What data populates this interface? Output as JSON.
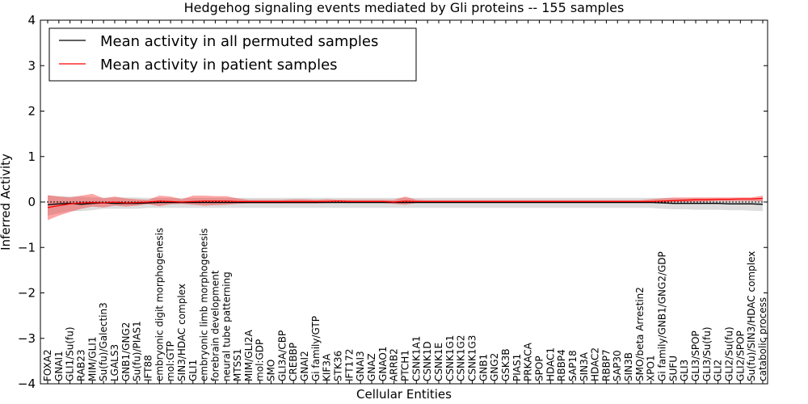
{
  "chart_data": {
    "type": "line",
    "title": "Hedgehog signaling events mediated by Gli proteins -- 155 samples",
    "xlabel": "Cellular Entities",
    "ylabel": "Inferred Activity",
    "ylim": [
      -4,
      4
    ],
    "yticks": [
      4,
      3,
      2,
      1,
      0,
      -1,
      -2,
      -3,
      -4
    ],
    "ytick_labels": [
      "4",
      "3",
      "2",
      "1",
      "0",
      "−1",
      "−2",
      "−3",
      "−4"
    ],
    "reference_line": 0,
    "legend": {
      "placement": "top-left",
      "entries": [
        {
          "label": "Mean activity in all permuted samples",
          "color": "#000000"
        },
        {
          "label": "Mean activity in patient samples",
          "color": "#ff0000"
        }
      ]
    },
    "categories": [
      "FOXA2",
      "GNAI1",
      "GLI1/Su(fu)",
      "RAB23",
      "MIM/GLI1",
      "Su(fu)/Galectin3",
      "LGALS3",
      "GNB1/GNG2",
      "Su(fu)/PIAS1",
      "IFT88",
      "embryonic digit morphogenesis",
      "mol:GTP",
      "SIN3/HDAC complex",
      "GLI1",
      "embryonic limb morphogenesis",
      "forebrain development",
      "neural tube patterning",
      "MTSS1",
      "MIM/GLI2A",
      "mol:GDP",
      "SMO",
      "GLI3A/CBP",
      "CREBBP",
      "GNAI2",
      "Gi family/GTP",
      "KIF3A",
      "STK36",
      "IFT172",
      "GNAI3",
      "GNAZ",
      "GNAO1",
      "ARRB2",
      "PTCH1",
      "CSNK1A1",
      "CSNK1D",
      "CSNK1E",
      "CSNK1G1",
      "CSNK1G2",
      "CSNK1G3",
      "GNB1",
      "GNG2",
      "GSK3B",
      "PIAS1",
      "PRKACA",
      "SPOP",
      "HDAC1",
      "RBBP4",
      "SAP18",
      "SIN3A",
      "HDAC2",
      "RBBP7",
      "SAP30",
      "SIN3B",
      "SMO/beta Arrestin2",
      "XPO1",
      "Gi family/GNB1/GNG2/GDP",
      "SUFU",
      "GLI3",
      "GLI3/SPOP",
      "GLI3/Su(fu)",
      "GLI2",
      "GLI2/Su(fu)",
      "GLI2/SPOP",
      "Su(fu)/SIN3/HDAC complex",
      "catabolic process"
    ],
    "series": [
      {
        "name": "Mean activity in all permuted samples",
        "color": "#000000",
        "values": [
          -0.06,
          -0.04,
          -0.03,
          -0.05,
          -0.03,
          -0.02,
          -0.03,
          -0.03,
          -0.03,
          -0.02,
          -0.01,
          -0.01,
          -0.01,
          -0.01,
          -0.01,
          -0.01,
          -0.01,
          -0.01,
          -0.01,
          -0.01,
          -0.01,
          -0.01,
          -0.01,
          -0.01,
          -0.01,
          -0.01,
          -0.01,
          -0.01,
          -0.01,
          -0.01,
          -0.01,
          -0.01,
          -0.01,
          -0.01,
          -0.01,
          -0.01,
          -0.01,
          -0.01,
          -0.01,
          -0.01,
          -0.01,
          -0.01,
          -0.01,
          -0.01,
          -0.01,
          -0.01,
          -0.01,
          -0.01,
          -0.01,
          -0.01,
          -0.01,
          -0.01,
          -0.01,
          -0.01,
          -0.01,
          -0.02,
          -0.03,
          -0.03,
          -0.03,
          -0.03,
          -0.03,
          -0.04,
          -0.04,
          -0.04,
          -0.05
        ],
        "band_low": [
          -0.3,
          -0.25,
          -0.2,
          -0.2,
          -0.18,
          -0.15,
          -0.15,
          -0.15,
          -0.15,
          -0.13,
          -0.13,
          -0.13,
          -0.13,
          -0.13,
          -0.13,
          -0.13,
          -0.13,
          -0.13,
          -0.13,
          -0.13,
          -0.13,
          -0.13,
          -0.13,
          -0.13,
          -0.13,
          -0.13,
          -0.13,
          -0.13,
          -0.13,
          -0.13,
          -0.13,
          -0.13,
          -0.13,
          -0.13,
          -0.13,
          -0.13,
          -0.13,
          -0.13,
          -0.13,
          -0.13,
          -0.13,
          -0.13,
          -0.13,
          -0.13,
          -0.13,
          -0.13,
          -0.13,
          -0.13,
          -0.13,
          -0.13,
          -0.13,
          -0.13,
          -0.13,
          -0.13,
          -0.13,
          -0.15,
          -0.16,
          -0.16,
          -0.17,
          -0.17,
          -0.17,
          -0.18,
          -0.18,
          -0.19,
          -0.2
        ],
        "band_high": [
          0.15,
          0.13,
          0.12,
          0.12,
          0.1,
          0.1,
          0.1,
          0.1,
          0.1,
          0.09,
          0.09,
          0.09,
          0.09,
          0.09,
          0.09,
          0.09,
          0.09,
          0.09,
          0.09,
          0.09,
          0.09,
          0.09,
          0.09,
          0.09,
          0.09,
          0.09,
          0.09,
          0.09,
          0.09,
          0.09,
          0.09,
          0.09,
          0.09,
          0.09,
          0.09,
          0.09,
          0.09,
          0.09,
          0.09,
          0.09,
          0.09,
          0.09,
          0.09,
          0.09,
          0.09,
          0.09,
          0.09,
          0.09,
          0.09,
          0.09,
          0.09,
          0.09,
          0.09,
          0.09,
          0.09,
          0.09,
          0.08,
          0.08,
          0.08,
          0.08,
          0.08,
          0.08,
          0.07,
          0.07,
          0.06
        ]
      },
      {
        "name": "Mean activity in patient samples",
        "color": "#ff0000",
        "values": [
          -0.12,
          -0.08,
          -0.04,
          -0.02,
          -0.01,
          -0.02,
          0.0,
          -0.02,
          -0.01,
          0.0,
          0.02,
          0.01,
          0.0,
          0.01,
          0.02,
          0.02,
          0.02,
          0.01,
          0.01,
          0.01,
          0.01,
          0.01,
          0.01,
          0.01,
          0.01,
          0.01,
          0.02,
          0.01,
          0.01,
          0.01,
          0.01,
          0.0,
          0.02,
          0.01,
          0.01,
          0.01,
          0.01,
          0.01,
          0.01,
          0.01,
          0.01,
          0.01,
          0.01,
          0.01,
          0.01,
          0.01,
          0.01,
          0.01,
          0.01,
          0.01,
          0.01,
          0.01,
          0.01,
          0.01,
          0.01,
          0.02,
          0.03,
          0.04,
          0.05,
          0.05,
          0.06,
          0.06,
          0.07,
          0.07,
          0.08
        ],
        "band_low": [
          -0.4,
          -0.3,
          -0.22,
          -0.15,
          -0.1,
          -0.12,
          -0.08,
          -0.1,
          -0.08,
          -0.05,
          -0.09,
          -0.05,
          -0.04,
          -0.06,
          -0.08,
          -0.07,
          -0.06,
          -0.04,
          -0.03,
          -0.03,
          -0.03,
          -0.03,
          -0.03,
          -0.03,
          -0.03,
          -0.02,
          -0.01,
          -0.02,
          -0.02,
          -0.02,
          -0.02,
          -0.04,
          -0.06,
          -0.02,
          -0.02,
          -0.02,
          -0.02,
          -0.02,
          -0.02,
          -0.02,
          -0.02,
          -0.02,
          -0.02,
          -0.02,
          -0.02,
          -0.02,
          -0.02,
          -0.02,
          -0.02,
          -0.02,
          -0.02,
          -0.02,
          -0.02,
          -0.02,
          -0.02,
          -0.01,
          0.0,
          0.0,
          0.0,
          0.01,
          0.02,
          0.02,
          0.02,
          0.02,
          0.02
        ],
        "band_high": [
          0.15,
          0.12,
          0.1,
          0.14,
          0.18,
          0.08,
          0.12,
          0.08,
          0.06,
          0.05,
          0.14,
          0.12,
          0.06,
          0.14,
          0.14,
          0.13,
          0.13,
          0.08,
          0.05,
          0.05,
          0.05,
          0.05,
          0.06,
          0.06,
          0.05,
          0.06,
          0.05,
          0.05,
          0.05,
          0.05,
          0.05,
          0.05,
          0.12,
          0.05,
          0.04,
          0.04,
          0.04,
          0.04,
          0.04,
          0.04,
          0.04,
          0.04,
          0.04,
          0.04,
          0.04,
          0.04,
          0.04,
          0.04,
          0.04,
          0.04,
          0.04,
          0.04,
          0.04,
          0.04,
          0.06,
          0.08,
          0.1,
          0.1,
          0.1,
          0.1,
          0.1,
          0.1,
          0.1,
          0.1,
          0.14
        ]
      }
    ]
  }
}
